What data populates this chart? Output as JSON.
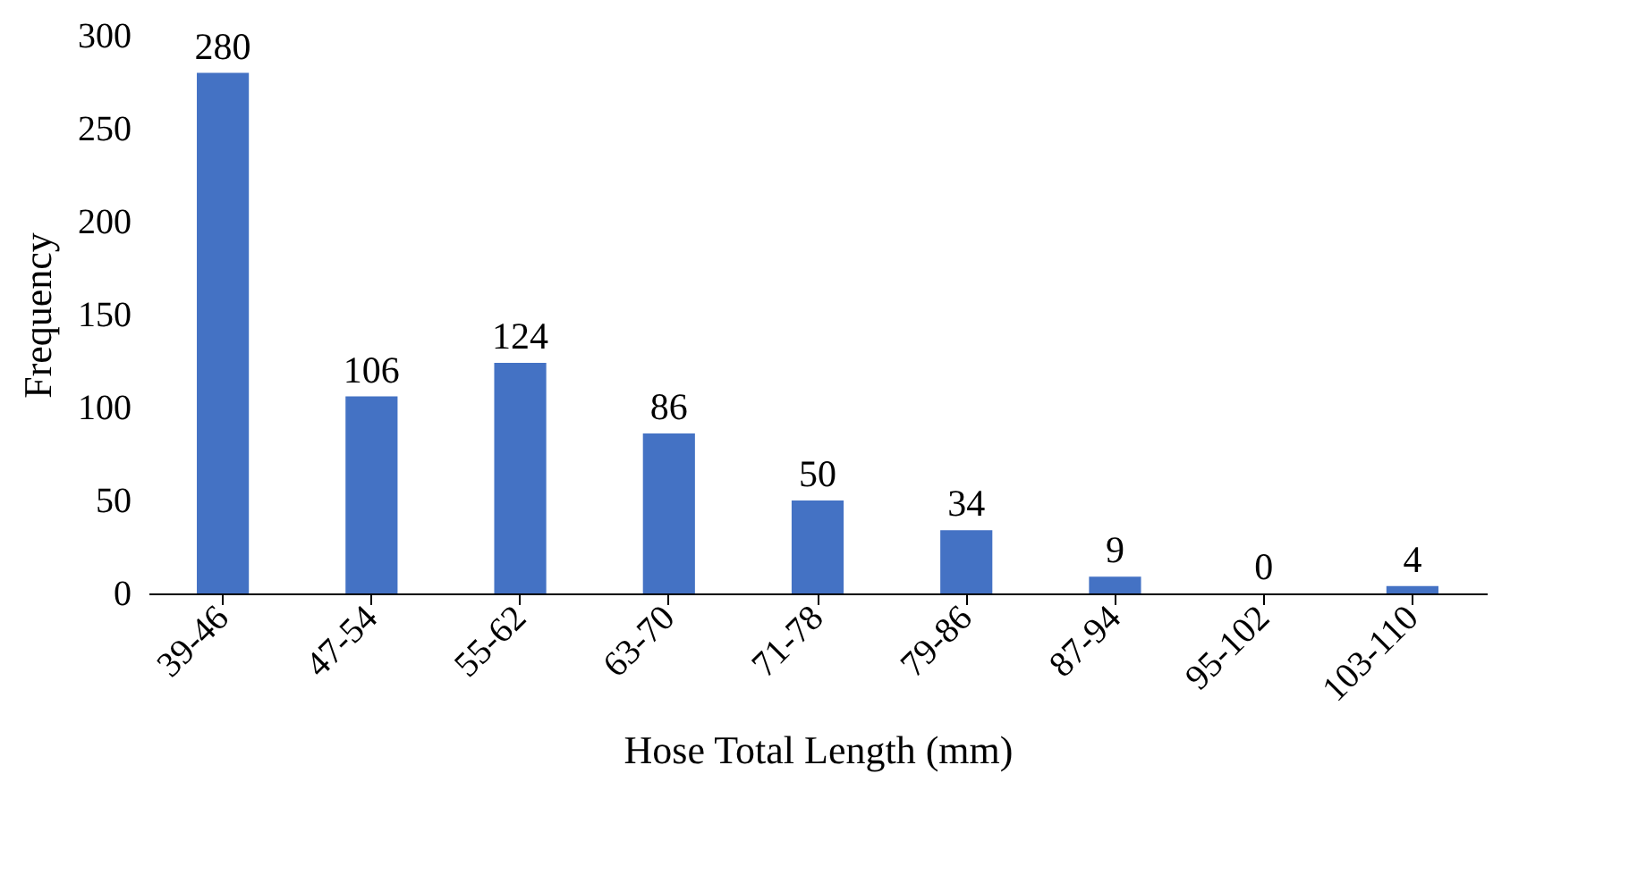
{
  "chart_data": {
    "type": "bar",
    "xlabel": "Hose Total Length (mm)",
    "ylabel": "Frequency",
    "categories": [
      "39-46",
      "47-54",
      "55-62",
      "63-70",
      "71-78",
      "79-86",
      "87-94",
      "95-102",
      "103-110"
    ],
    "values": [
      280,
      106,
      124,
      86,
      50,
      34,
      9,
      0,
      4
    ],
    "color": "#4472c4",
    "ylim": [
      0,
      300
    ],
    "yticks": [
      0,
      50,
      100,
      150,
      200,
      250,
      300
    ],
    "data_labels": true,
    "grid": false
  }
}
